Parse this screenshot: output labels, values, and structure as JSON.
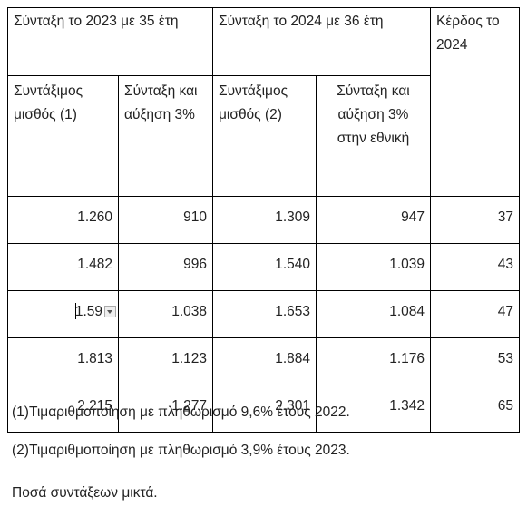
{
  "table": {
    "header": [
      [
        "Σύνταξη το 2023 με 35 έτη",
        "Σύνταξη το 2024 με 36 έτη",
        "Κέρδος το 2024"
      ],
      [
        "Συντάξιμος μισθός (1)",
        "Σύνταξη και αύξηση 3%",
        "Συντάξιμος μισθός (2)",
        "Σύνταξη και αύξηση 3% στην εθνική"
      ]
    ],
    "rows": [
      [
        "1.260",
        "910",
        "1.309",
        "947",
        "37"
      ],
      [
        "1.482",
        "996",
        "1.540",
        "1.039",
        "43"
      ],
      [
        "1.59",
        "1.038",
        "1.653",
        "1.084",
        "47"
      ],
      [
        "1.813",
        "1.123",
        "1.884",
        "1.176",
        "53"
      ],
      [
        "2.215",
        "1.277",
        "2.301",
        "1.342",
        "65"
      ]
    ]
  },
  "notes": [
    "(1)Τιμαριθμοποίηση με πληθωρισμό 9,6% έτους 2022.",
    "(2)Τιμαριθμοποίηση με πληθωρισμό 3,9% έτους 2023.",
    "Ποσά συντάξεων μικτά."
  ]
}
